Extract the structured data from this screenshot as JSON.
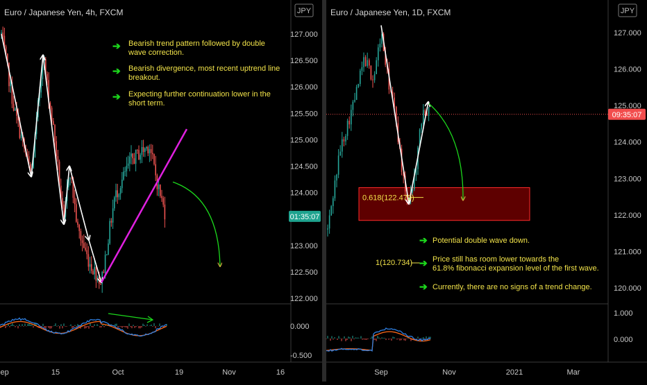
{
  "colors": {
    "background": "#000000",
    "up": "#26a69a",
    "down": "#ef5350",
    "annotation_text": "#f2e34a",
    "arrow_green": "#1cd81c",
    "trendline": "#e020e0",
    "macd_line": "#2f7fe0",
    "signal_line": "#ff6a1a",
    "zone_fill": "#6a0000",
    "zone_border": "#ff2a2a",
    "price_label_teal": "#1fa38f",
    "price_label_red": "#f24d4d"
  },
  "chart_data": [
    {
      "type": "candlestick",
      "title": "Euro / Japanese Yen, 4h, FXCM",
      "currency_badge": "JPY",
      "ylim": [
        121.9,
        127.5
      ],
      "y_ticks": [
        "127.000",
        "126.500",
        "126.000",
        "125.500",
        "125.000",
        "124.500",
        "124.000",
        "123.500",
        "123.000",
        "122.500",
        "122.000"
      ],
      "x_ticks": [
        "Sep",
        "15",
        "Oct",
        "19",
        "Nov",
        "16"
      ],
      "last_price_label": "01:35:07",
      "annotations": [
        "Bearish trend pattern followed by double wave correction.",
        "Bearish divergence, most recent uptrend line breakout.",
        "Expecting further continuation lower in the short term."
      ],
      "zigzag": [
        [
          0.0,
          127.0
        ],
        [
          0.19,
          124.3
        ],
        [
          0.46,
          126.6
        ],
        [
          0.76,
          123.4
        ],
        [
          0.93,
          124.5
        ],
        [
          1.1,
          123.1
        ],
        [
          1.25,
          122.3
        ]
      ],
      "trendline": [
        [
          1.25,
          122.3
        ],
        [
          2.22,
          125.2
        ]
      ],
      "forecast": [
        [
          2.1,
          124.2
        ],
        [
          2.55,
          122.6
        ]
      ],
      "indicator_ticks": [
        "0.000",
        "-0.500"
      ]
    },
    {
      "type": "candlestick",
      "title": "Euro / Japanese Yen, 1D, FXCM",
      "currency_badge": "JPY",
      "ylim": [
        119.6,
        127.7
      ],
      "y_ticks": [
        "127.000",
        "126.000",
        "125.000",
        "124.000",
        "123.000",
        "122.000",
        "121.000",
        "120.000"
      ],
      "x_ticks": [
        "Sep",
        "Nov",
        "2021",
        "Mar"
      ],
      "last_price_label": "09:35:07",
      "last_price": 124.76,
      "fib_label": "0.618(122.479)",
      "fib_level": 122.479,
      "zone": [
        121.85,
        122.75
      ],
      "target_label": "1(120.734)",
      "target_level": 120.734,
      "annotations": [
        "Potential double wave down.",
        "Price still has room lower towards the 61.8% fibonacci expansion level of the first wave.",
        "Currently, there are no signs of a trend change."
      ],
      "zigzag": [
        [
          0.0,
          127.2
        ],
        [
          0.21,
          122.3
        ],
        [
          0.33,
          125.1
        ]
      ],
      "forecast": [
        [
          0.35,
          125.05
        ],
        [
          0.66,
          122.4
        ]
      ],
      "indicator_ticks": [
        "1.000",
        "0.000"
      ]
    }
  ]
}
